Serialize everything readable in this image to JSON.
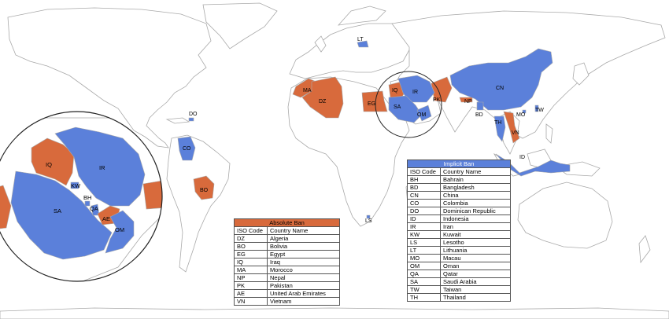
{
  "colors": {
    "absolute": "#d86a3c",
    "implicit": "#5b80da",
    "land": "#ffffff",
    "border": "#a9a9a9"
  },
  "map_labels": {
    "LT": "LT",
    "MA": "MA",
    "DZ": "DZ",
    "EG": "EG",
    "IQ": "IQ",
    "IR": "IR",
    "SA": "SA",
    "OM": "OM",
    "PK": "PK",
    "NP": "NP",
    "BD": "BD",
    "CN": "CN",
    "TW": "TW",
    "MO": "MO",
    "TH": "TH",
    "VN": "VN",
    "ID": "ID",
    "DO": "DO",
    "CO": "CO",
    "BO": "BO",
    "LS": "LS"
  },
  "inset_labels": {
    "IQ": "IQ",
    "IR": "IR",
    "KW": "KW",
    "BH": "BH",
    "SA": "SA",
    "QA": "QA",
    "AE": "AE",
    "OM": "OM"
  },
  "absolute_ban": {
    "title": "Absolute Ban",
    "header": {
      "code": "ISO Code",
      "name": "Country Name"
    },
    "rows": [
      {
        "code": "DZ",
        "name": "Algeria"
      },
      {
        "code": "BO",
        "name": "Bolivia"
      },
      {
        "code": "EG",
        "name": "Egypt"
      },
      {
        "code": "IQ",
        "name": "Iraq"
      },
      {
        "code": "MA",
        "name": "Morocco"
      },
      {
        "code": "NP",
        "name": "Nepal"
      },
      {
        "code": "PK",
        "name": "Pakistan"
      },
      {
        "code": "AE",
        "name": "United Arab Emirates"
      },
      {
        "code": "VN",
        "name": "Vietnam"
      }
    ]
  },
  "implicit_ban": {
    "title": "Implicit Ban",
    "header": {
      "code": "ISO Code",
      "name": "Country Name"
    },
    "rows": [
      {
        "code": "BH",
        "name": "Bahrain"
      },
      {
        "code": "BD",
        "name": "Bangladesh"
      },
      {
        "code": "CN",
        "name": "China"
      },
      {
        "code": "CO",
        "name": "Colombia"
      },
      {
        "code": "DO",
        "name": "Dominican Republic"
      },
      {
        "code": "ID",
        "name": "Indonesia"
      },
      {
        "code": "IR",
        "name": "Iran"
      },
      {
        "code": "KW",
        "name": "Kuwait"
      },
      {
        "code": "LS",
        "name": "Lesotho"
      },
      {
        "code": "LT",
        "name": "Lithuania"
      },
      {
        "code": "MO",
        "name": "Macau"
      },
      {
        "code": "OM",
        "name": "Oman"
      },
      {
        "code": "QA",
        "name": "Qatar"
      },
      {
        "code": "SA",
        "name": "Saudi Arabia"
      },
      {
        "code": "TW",
        "name": "Taiwan"
      },
      {
        "code": "TH",
        "name": "Thailand"
      }
    ]
  }
}
